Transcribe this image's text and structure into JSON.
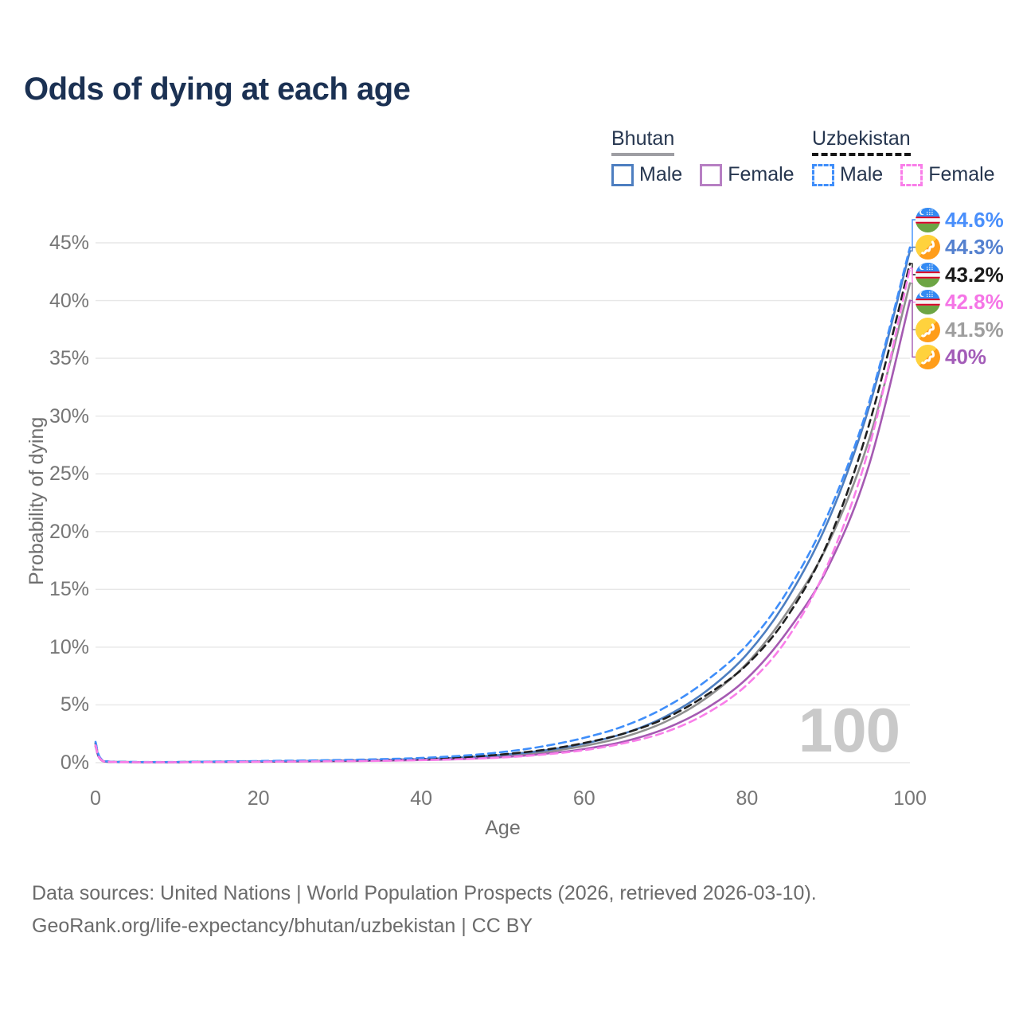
{
  "page": {
    "title": "Odds of dying at each age"
  },
  "legend": {
    "groups": [
      {
        "country": "Bhutan",
        "line_style": "solid",
        "underline_color": "#9e9ea3",
        "items": [
          {
            "label": "Male",
            "color": "#4d7ec0"
          },
          {
            "label": "Female",
            "color": "#b77fc3"
          }
        ]
      },
      {
        "country": "Uzbekistan",
        "line_style": "dashed",
        "underline_color": "#161616",
        "items": [
          {
            "label": "Male",
            "color": "#3f8efa"
          },
          {
            "label": "Female",
            "color": "#f97ee9"
          }
        ]
      }
    ]
  },
  "watermark": "100",
  "footer": {
    "line1": "Data sources: United Nations | World Population Prospects (2026, retrieved 2026-03-10).",
    "line2": "GeoRank.org/life-expectancy/bhutan/uzbekistan | CC BY"
  },
  "chart_data": {
    "type": "line",
    "title": "Odds of dying at each age",
    "xlabel": "Age",
    "ylabel": "Probability of dying",
    "xlim": [
      0,
      100
    ],
    "ylim": [
      0,
      46
    ],
    "xticks": [
      0,
      20,
      40,
      60,
      80,
      100
    ],
    "xtick_labels": [
      "0",
      "20",
      "40",
      "60",
      "80",
      "100"
    ],
    "yticks": [
      0,
      5,
      10,
      15,
      20,
      25,
      30,
      35,
      40,
      45
    ],
    "ytick_labels": [
      "0%",
      "5%",
      "10%",
      "15%",
      "20%",
      "25%",
      "30%",
      "35%",
      "40%",
      "45%"
    ],
    "grid": "horizontal-only",
    "legend_position": "top-right",
    "series": [
      {
        "id": "bhutan-total",
        "name": "Bhutan (both sexes)",
        "color": "#8f8f8f",
        "dashed": false,
        "points": [
          [
            0,
            1.5
          ],
          [
            1,
            0.11
          ],
          [
            5,
            0.05
          ],
          [
            10,
            0.05
          ],
          [
            15,
            0.07
          ],
          [
            20,
            0.1
          ],
          [
            25,
            0.12
          ],
          [
            30,
            0.15
          ],
          [
            35,
            0.2
          ],
          [
            40,
            0.27
          ],
          [
            45,
            0.38
          ],
          [
            50,
            0.58
          ],
          [
            55,
            0.92
          ],
          [
            60,
            1.45
          ],
          [
            65,
            2.25
          ],
          [
            70,
            3.55
          ],
          [
            75,
            5.6
          ],
          [
            80,
            8.6
          ],
          [
            85,
            13.1
          ],
          [
            90,
            19.0
          ],
          [
            95,
            28.0
          ],
          [
            100,
            41.5
          ]
        ]
      },
      {
        "id": "bhutan-male",
        "name": "Bhutan Male",
        "color": "#4d7ec0",
        "dashed": false,
        "points": [
          [
            0,
            1.6
          ],
          [
            1,
            0.12
          ],
          [
            5,
            0.05
          ],
          [
            10,
            0.05
          ],
          [
            15,
            0.08
          ],
          [
            20,
            0.11
          ],
          [
            25,
            0.14
          ],
          [
            30,
            0.18
          ],
          [
            35,
            0.23
          ],
          [
            40,
            0.31
          ],
          [
            45,
            0.44
          ],
          [
            50,
            0.68
          ],
          [
            55,
            1.05
          ],
          [
            60,
            1.65
          ],
          [
            65,
            2.55
          ],
          [
            70,
            4.0
          ],
          [
            75,
            6.2
          ],
          [
            80,
            9.4
          ],
          [
            85,
            14.2
          ],
          [
            90,
            21.0
          ],
          [
            95,
            30.8
          ],
          [
            100,
            44.3
          ]
        ]
      },
      {
        "id": "bhutan-female",
        "name": "Bhutan Female",
        "color": "#a55ab2",
        "dashed": false,
        "points": [
          [
            0,
            1.4
          ],
          [
            1,
            0.1
          ],
          [
            5,
            0.04
          ],
          [
            10,
            0.04
          ],
          [
            15,
            0.06
          ],
          [
            20,
            0.08
          ],
          [
            25,
            0.1
          ],
          [
            30,
            0.13
          ],
          [
            35,
            0.17
          ],
          [
            40,
            0.23
          ],
          [
            45,
            0.32
          ],
          [
            50,
            0.48
          ],
          [
            55,
            0.76
          ],
          [
            60,
            1.18
          ],
          [
            65,
            1.85
          ],
          [
            70,
            2.95
          ],
          [
            75,
            4.7
          ],
          [
            80,
            7.3
          ],
          [
            85,
            11.4
          ],
          [
            90,
            17.0
          ],
          [
            95,
            25.8
          ],
          [
            100,
            40.0
          ]
        ]
      },
      {
        "id": "uzbekistan-total",
        "name": "Uzbekistan (both sexes)",
        "color": "#1f1f1f",
        "dashed": true,
        "points": [
          [
            0,
            1.7
          ],
          [
            1,
            0.13
          ],
          [
            5,
            0.05
          ],
          [
            10,
            0.05
          ],
          [
            15,
            0.08
          ],
          [
            20,
            0.11
          ],
          [
            25,
            0.15
          ],
          [
            30,
            0.19
          ],
          [
            35,
            0.25
          ],
          [
            40,
            0.33
          ],
          [
            45,
            0.47
          ],
          [
            50,
            0.72
          ],
          [
            55,
            1.1
          ],
          [
            60,
            1.7
          ],
          [
            65,
            2.55
          ],
          [
            70,
            3.85
          ],
          [
            75,
            5.85
          ],
          [
            80,
            8.5
          ],
          [
            85,
            12.7
          ],
          [
            90,
            19.2
          ],
          [
            95,
            29.3
          ],
          [
            100,
            43.2
          ]
        ]
      },
      {
        "id": "uzbekistan-male",
        "name": "Uzbekistan Male",
        "color": "#3f8efa",
        "dashed": true,
        "points": [
          [
            0,
            1.8
          ],
          [
            1,
            0.15
          ],
          [
            5,
            0.06
          ],
          [
            10,
            0.06
          ],
          [
            15,
            0.1
          ],
          [
            20,
            0.14
          ],
          [
            25,
            0.18
          ],
          [
            30,
            0.23
          ],
          [
            35,
            0.3
          ],
          [
            40,
            0.41
          ],
          [
            45,
            0.6
          ],
          [
            50,
            0.92
          ],
          [
            55,
            1.42
          ],
          [
            60,
            2.15
          ],
          [
            65,
            3.2
          ],
          [
            70,
            4.8
          ],
          [
            75,
            7.1
          ],
          [
            80,
            10.2
          ],
          [
            85,
            14.9
          ],
          [
            90,
            21.6
          ],
          [
            95,
            31.2
          ],
          [
            100,
            44.6
          ]
        ]
      },
      {
        "id": "uzbekistan-female",
        "name": "Uzbekistan Female",
        "color": "#f97ee9",
        "dashed": true,
        "points": [
          [
            0,
            1.5
          ],
          [
            1,
            0.11
          ],
          [
            5,
            0.04
          ],
          [
            10,
            0.04
          ],
          [
            15,
            0.06
          ],
          [
            20,
            0.08
          ],
          [
            25,
            0.1
          ],
          [
            30,
            0.13
          ],
          [
            35,
            0.16
          ],
          [
            40,
            0.22
          ],
          [
            45,
            0.3
          ],
          [
            50,
            0.45
          ],
          [
            55,
            0.7
          ],
          [
            60,
            1.08
          ],
          [
            65,
            1.7
          ],
          [
            70,
            2.65
          ],
          [
            75,
            4.25
          ],
          [
            80,
            6.75
          ],
          [
            85,
            10.8
          ],
          [
            90,
            17.3
          ],
          [
            95,
            27.3
          ],
          [
            100,
            42.8
          ]
        ]
      }
    ],
    "end_labels": [
      {
        "series": "uzbekistan-male",
        "flag": "uzbekistan",
        "text": "44.6%",
        "value": 44.6,
        "color": "#4a8ffb"
      },
      {
        "series": "bhutan-male",
        "flag": "bhutan",
        "text": "44.3%",
        "value": 44.3,
        "color": "#5581cf"
      },
      {
        "series": "uzbekistan-total",
        "flag": "uzbekistan",
        "text": "43.2%",
        "value": 43.2,
        "color": "#1a1a1a"
      },
      {
        "series": "uzbekistan-female",
        "flag": "uzbekistan",
        "text": "42.8%",
        "value": 42.8,
        "color": "#f575e6"
      },
      {
        "series": "bhutan-total",
        "flag": "bhutan",
        "text": "41.5%",
        "value": 41.5,
        "color": "#9e9e9e"
      },
      {
        "series": "bhutan-female",
        "flag": "bhutan",
        "text": "40%",
        "value": 40.0,
        "color": "#a35cb8"
      }
    ]
  }
}
